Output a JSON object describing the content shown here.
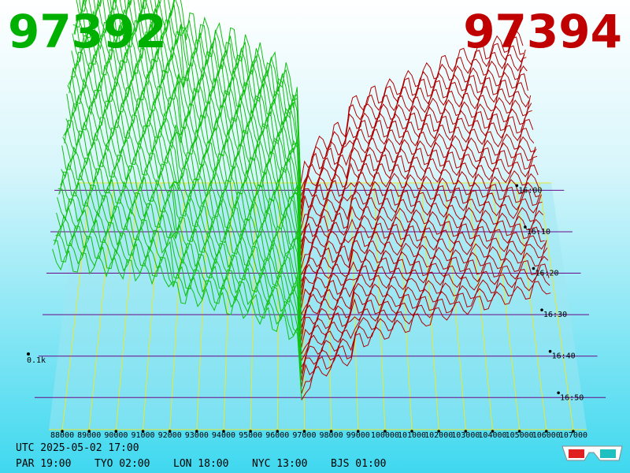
{
  "header": {
    "bid": "97392",
    "ask": "97394"
  },
  "price_axis": [
    "88000",
    "89000",
    "90000",
    "91000",
    "92000",
    "93000",
    "94000",
    "95000",
    "96000",
    "97000",
    "98000",
    "99000",
    "100000",
    "101000",
    "102000",
    "103000",
    "104000",
    "105000",
    "106000",
    "107000"
  ],
  "time_axis": [
    "16:00",
    "16:10",
    "16:20",
    "16:30",
    "16:40",
    "16:50"
  ],
  "depth_label": "0.1k",
  "clock": {
    "utc": "UTC 2025-05-02 17:00",
    "cities": [
      "PAR 19:00",
      "TYO 02:00",
      "LON 18:00",
      "NYC 13:00",
      "BJS 01:00"
    ]
  }
}
